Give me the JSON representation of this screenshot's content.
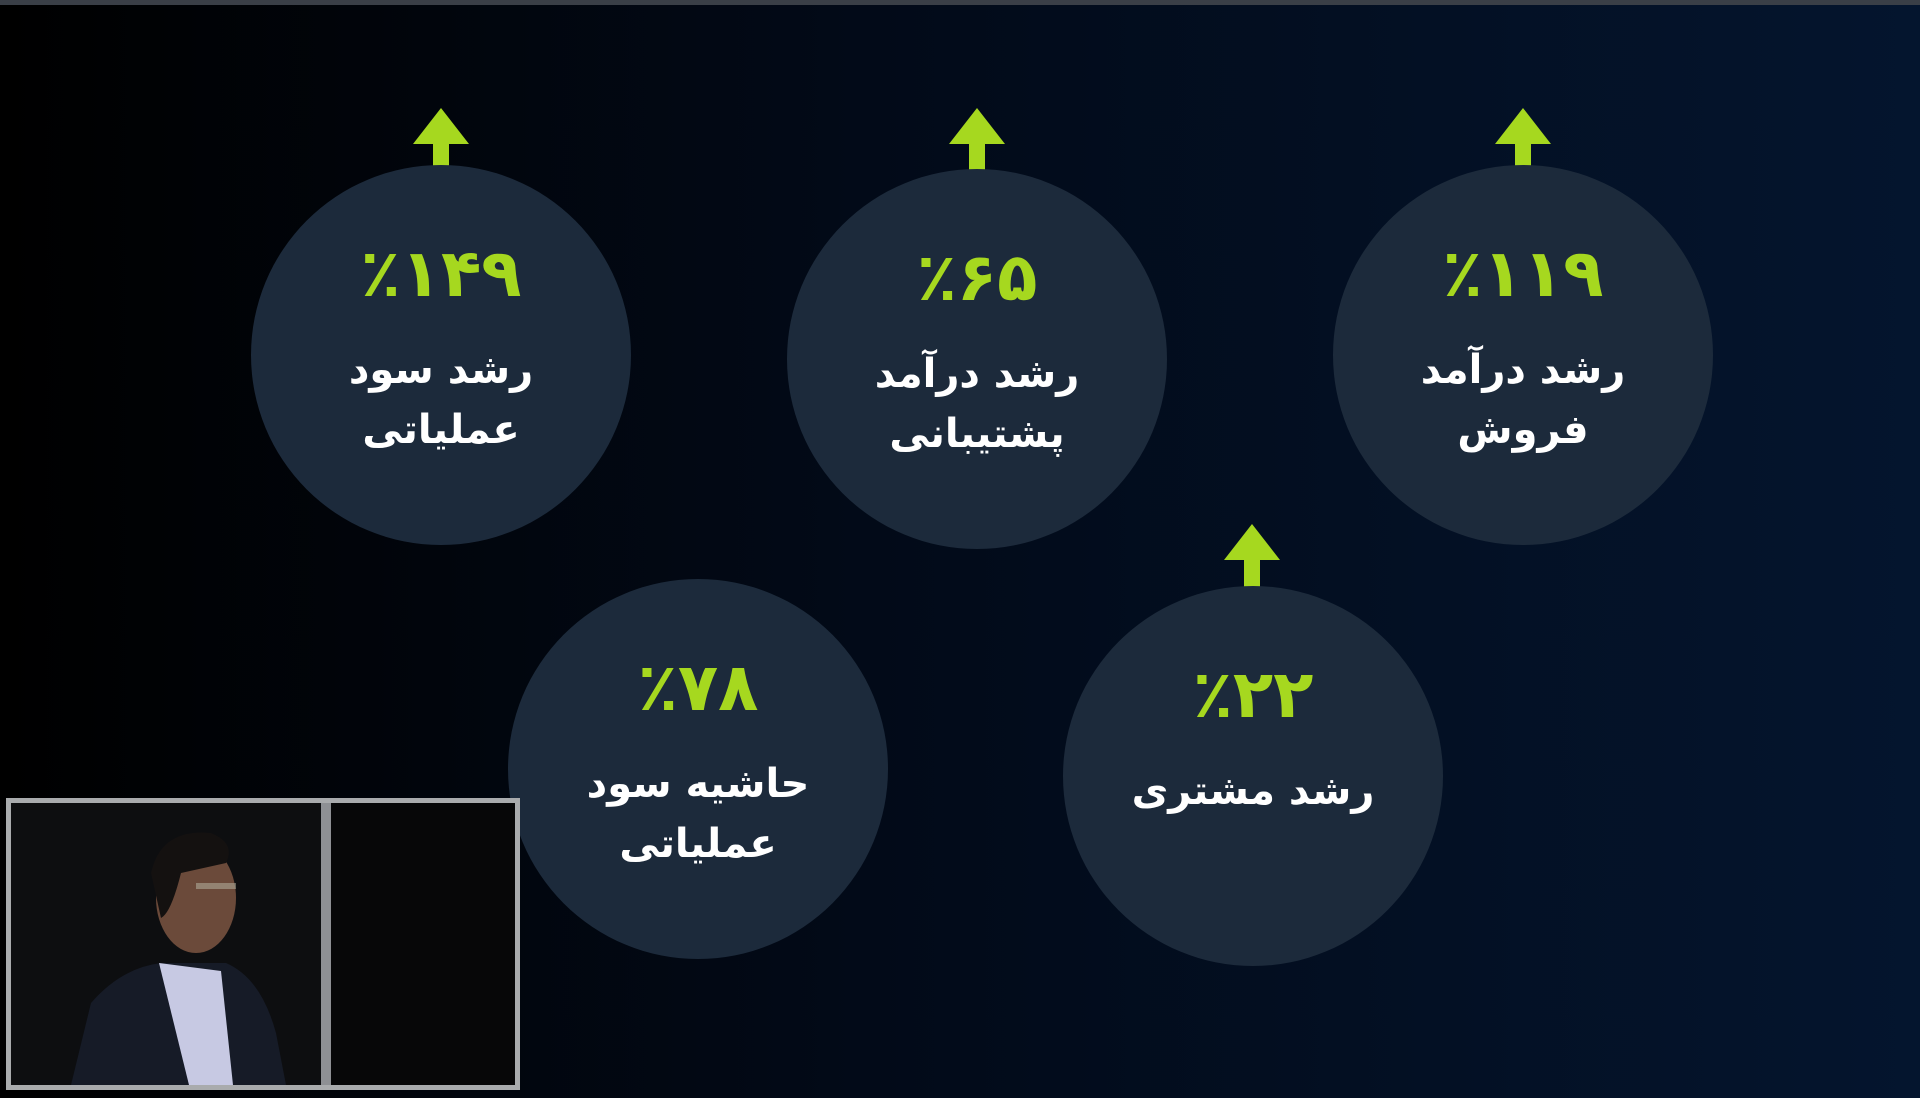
{
  "colors": {
    "accent": "#a6d81f",
    "circle": "#1c2a3b",
    "background": "#04152e"
  },
  "metrics": [
    {
      "value": "٪۱۴۹",
      "label": "رشد سود عملیاتی",
      "icon": "arrow-up-icon"
    },
    {
      "value": "٪۶۵",
      "label": "رشد درآمد پشتیبانی",
      "icon": "arrow-up-icon"
    },
    {
      "value": "٪۱۱۹",
      "label": "رشد درآمد فروش",
      "icon": "arrow-up-icon"
    },
    {
      "value": "٪۷۸",
      "label": "حاشیه سود عملیاتی",
      "icon": "none"
    },
    {
      "value": "٪۲۲",
      "label": "رشد مشتری",
      "icon": "arrow-up-icon"
    }
  ],
  "webcam": {
    "description_icon": "presenter-video"
  }
}
